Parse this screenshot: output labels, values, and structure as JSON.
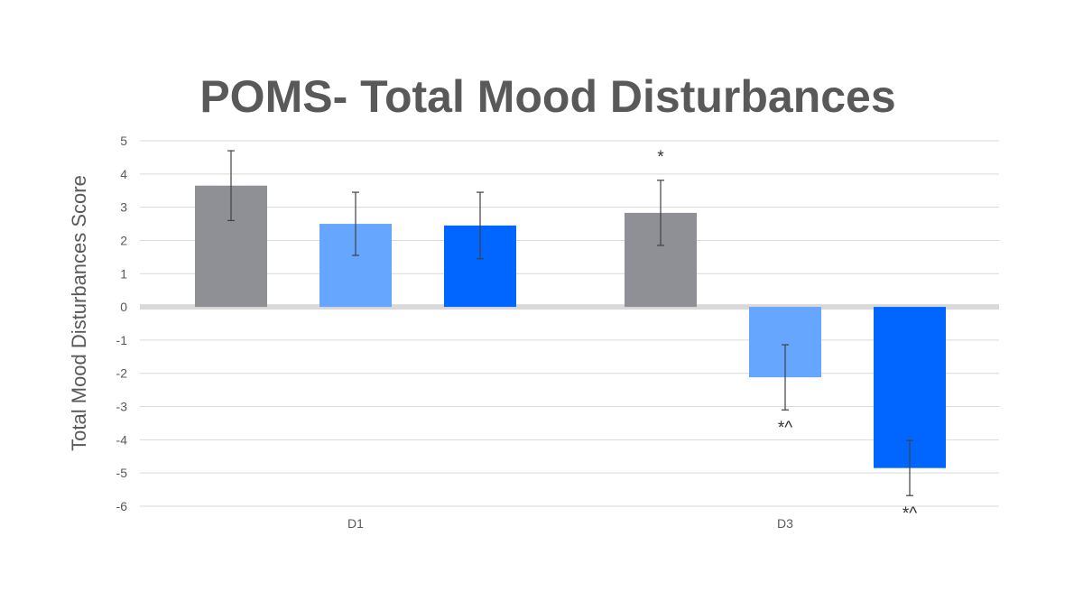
{
  "chart_data": {
    "type": "bar",
    "title": "POMS- Total Mood Disturbances",
    "xlabel": "",
    "ylabel": "Total Mood Disturbances Score",
    "ylim": [
      -6,
      5
    ],
    "yticks": [
      5,
      4,
      3,
      2,
      1,
      0,
      -1,
      -2,
      -3,
      -4,
      -5,
      -6
    ],
    "grid": true,
    "legend": "none",
    "categories": [
      "D1",
      "D3"
    ],
    "series": [
      {
        "color": "#8f9095",
        "values": [
          3.65,
          2.83
        ],
        "errors": [
          1.05,
          0.98
        ],
        "annotations": [
          "",
          "*"
        ]
      },
      {
        "color": "#66a6ff",
        "values": [
          2.5,
          -2.12
        ],
        "errors": [
          0.95,
          0.98
        ],
        "annotations": [
          "",
          "*^"
        ]
      },
      {
        "color": "#0066ff",
        "values": [
          2.45,
          -4.85
        ],
        "errors": [
          1.0,
          0.83
        ],
        "annotations": [
          "",
          "*^"
        ]
      }
    ]
  }
}
